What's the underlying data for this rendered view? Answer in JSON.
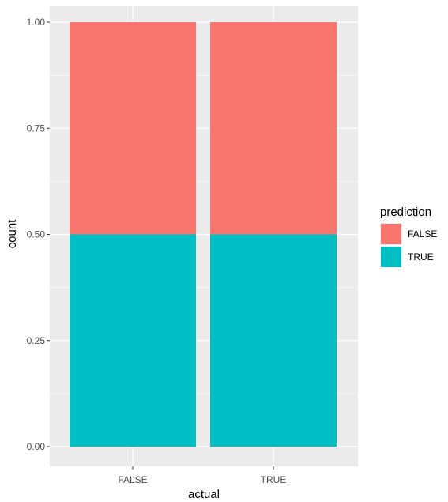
{
  "chart_data": {
    "type": "bar",
    "stacked": true,
    "categories": [
      "FALSE",
      "TRUE"
    ],
    "series": [
      {
        "name": "FALSE",
        "color": "#F8766D",
        "values": [
          0.5,
          0.5
        ]
      },
      {
        "name": "TRUE",
        "color": "#00BFC4",
        "values": [
          0.5,
          0.5
        ]
      }
    ],
    "xlabel": "actual",
    "ylabel": "count",
    "ylim": [
      0,
      1
    ],
    "yticks": [
      "0.00",
      "0.25",
      "0.50",
      "0.75",
      "1.00"
    ],
    "grid": true,
    "panel_background": "#EBEBEB",
    "legend": {
      "title": "prediction",
      "placement": "right"
    }
  }
}
